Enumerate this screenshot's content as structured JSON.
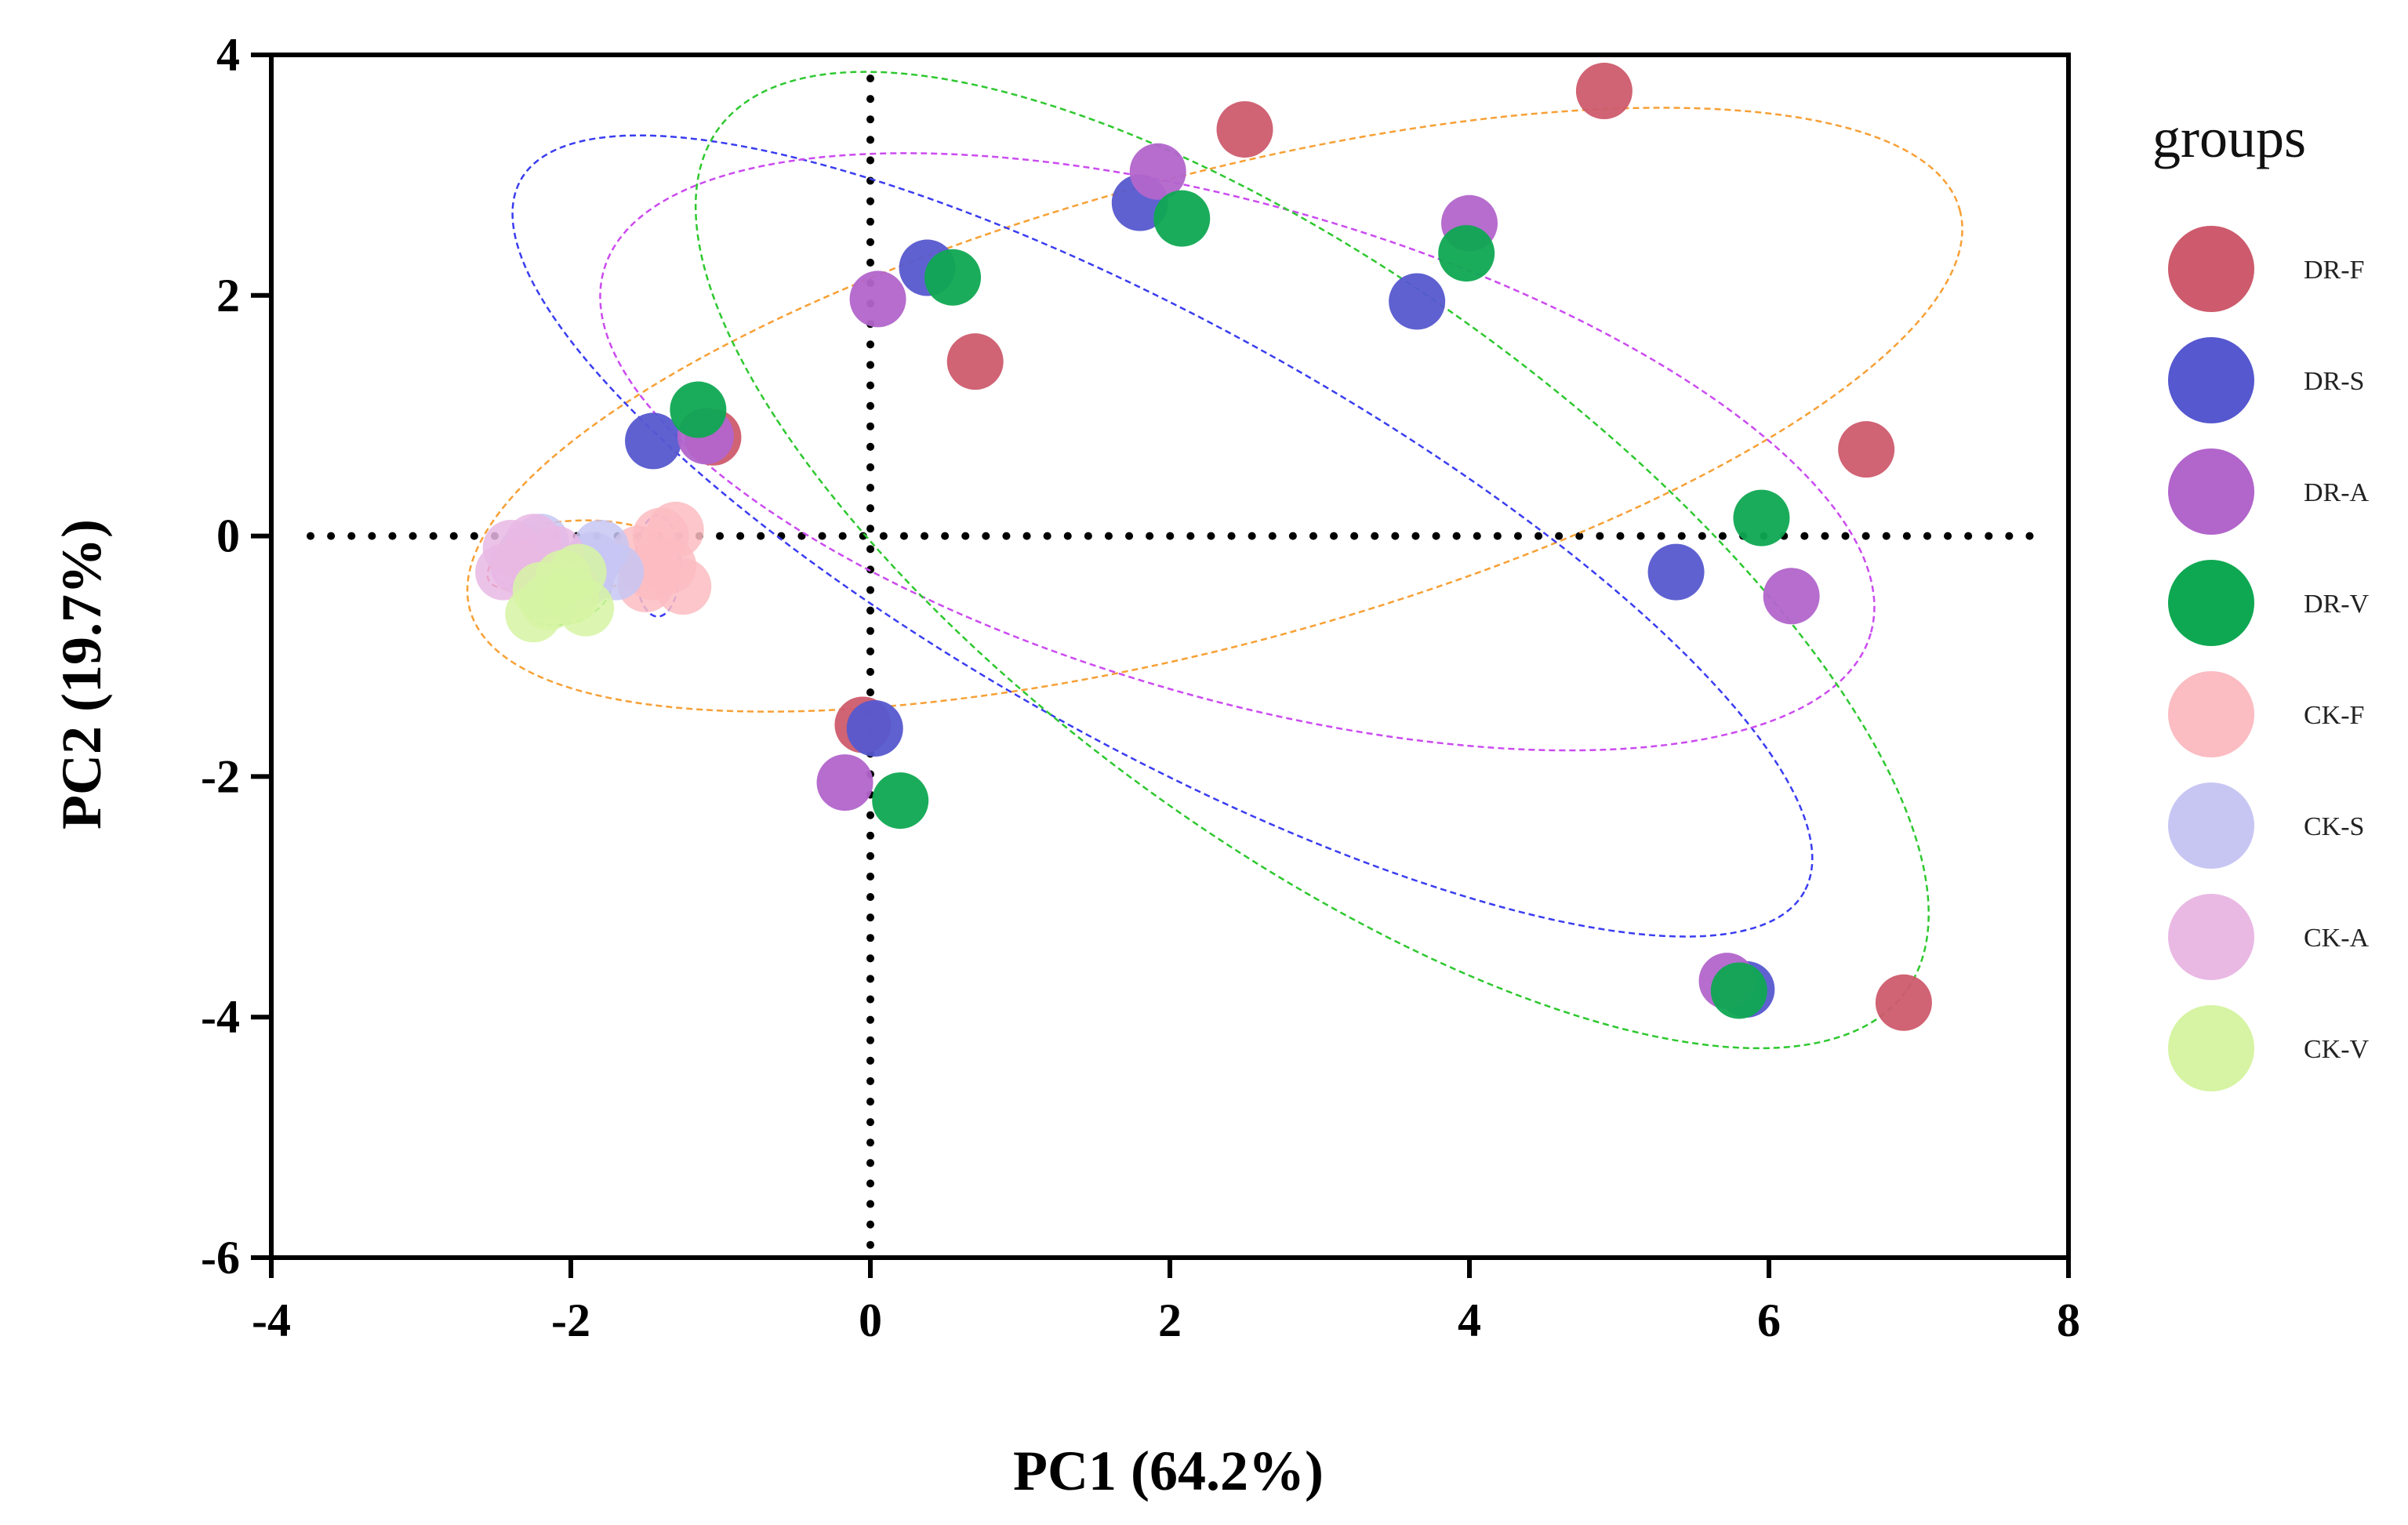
{
  "chart_data": {
    "type": "scatter",
    "xlabel": "PC1 (64.2%)",
    "ylabel": "PC2 (19.7%)",
    "xlim": [
      -4,
      8
    ],
    "ylim": [
      -6,
      4
    ],
    "xticks": [
      "-4",
      "-2",
      "0",
      "2",
      "4",
      "6",
      "8"
    ],
    "yticks": [
      "4",
      "2",
      "0",
      "-2",
      "-4",
      "-6"
    ],
    "reference_lines": {
      "x": 0,
      "y": 0,
      "style": "dotted"
    },
    "legend": {
      "title": "groups",
      "position": "right"
    },
    "series": [
      {
        "name": "DR-F",
        "color": "#cd5b6d",
        "ellipse_color": "#f7a035",
        "points": [
          [
            4.9,
            3.7
          ],
          [
            2.5,
            3.38
          ],
          [
            0.7,
            1.45
          ],
          [
            6.65,
            0.72
          ],
          [
            -0.05,
            -1.57
          ],
          [
            6.9,
            -3.88
          ],
          [
            -1.05,
            0.82
          ]
        ]
      },
      {
        "name": "DR-S",
        "color": "#5658cf",
        "ellipse_color": "#3a3df0",
        "points": [
          [
            1.8,
            2.77
          ],
          [
            0.38,
            2.23
          ],
          [
            3.65,
            1.95
          ],
          [
            -1.45,
            0.79
          ],
          [
            5.38,
            -0.3
          ],
          [
            0.03,
            -1.6
          ],
          [
            5.85,
            -3.77
          ]
        ]
      },
      {
        "name": "DR-A",
        "color": "#b265cb",
        "ellipse_color": "#cb4bf0",
        "points": [
          [
            1.92,
            3.03
          ],
          [
            4.0,
            2.6
          ],
          [
            0.05,
            1.97
          ],
          [
            -1.1,
            0.83
          ],
          [
            6.15,
            -0.5
          ],
          [
            -0.17,
            -2.05
          ],
          [
            5.72,
            -3.7
          ]
        ]
      },
      {
        "name": "DR-V",
        "color": "#0fa852",
        "ellipse_color": "#2ec830",
        "points": [
          [
            2.08,
            2.64
          ],
          [
            0.55,
            2.15
          ],
          [
            3.98,
            2.35
          ],
          [
            -1.15,
            1.05
          ],
          [
            5.95,
            0.15
          ],
          [
            0.2,
            -2.2
          ],
          [
            5.8,
            -3.78
          ]
        ]
      },
      {
        "name": "CK-F",
        "color": "#fbbcc2",
        "ellipse_color": "#f7a035",
        "points": [
          [
            -1.5,
            -0.4
          ],
          [
            -1.25,
            -0.42
          ],
          [
            -1.4,
            0.0
          ],
          [
            -1.55,
            -0.15
          ],
          [
            -1.35,
            -0.25
          ],
          [
            -1.45,
            -0.3
          ],
          [
            -1.3,
            0.05
          ]
        ]
      },
      {
        "name": "CK-S",
        "color": "#c7c6f3",
        "ellipse_color": "#3a3df0",
        "points": [
          [
            -2.2,
            -0.05
          ],
          [
            -1.85,
            -0.2
          ],
          [
            -1.7,
            -0.3
          ],
          [
            -2.0,
            -0.3
          ],
          [
            -1.8,
            -0.1
          ],
          [
            -2.3,
            -0.15
          ],
          [
            -1.9,
            -0.35
          ]
        ]
      },
      {
        "name": "CK-A",
        "color": "#e9b9e4",
        "ellipse_color": "#cb4bf0",
        "points": [
          [
            -2.35,
            -0.25
          ],
          [
            -2.2,
            -0.35
          ],
          [
            -2.1,
            -0.15
          ],
          [
            -2.45,
            -0.3
          ],
          [
            -2.0,
            -0.45
          ],
          [
            -2.25,
            -0.05
          ],
          [
            -2.4,
            -0.1
          ]
        ]
      },
      {
        "name": "CK-V",
        "color": "#d6f4a3",
        "ellipse_color": "#2ec830",
        "points": [
          [
            -2.25,
            -0.65
          ],
          [
            -2.0,
            -0.5
          ],
          [
            -1.95,
            -0.3
          ],
          [
            -2.15,
            -0.55
          ],
          [
            -1.9,
            -0.6
          ],
          [
            -2.05,
            -0.35
          ],
          [
            -2.2,
            -0.45
          ]
        ]
      }
    ],
    "ellipses": [
      {
        "group": "DR-F",
        "color": "#f7a035",
        "cx": 2.3,
        "cy": 1.05,
        "rx": 5.15,
        "ry": 1.95,
        "angle": 15
      },
      {
        "group": "DR-S",
        "color": "#3a3df0",
        "cx": 1.95,
        "cy": 0.0,
        "rx": 4.9,
        "ry": 1.75,
        "angle": -29
      },
      {
        "group": "DR-A",
        "color": "#cb4bf0",
        "cx": 2.45,
        "cy": 0.7,
        "rx": 4.4,
        "ry": 2.05,
        "angle": -16
      },
      {
        "group": "DR-V",
        "color": "#2ec830",
        "cx": 2.95,
        "cy": -0.2,
        "rx": 4.9,
        "ry": 2.35,
        "angle": -36
      },
      {
        "group": "CK-F",
        "color": "#f7a035",
        "cx": -1.9,
        "cy": -0.15,
        "rx": 0.6,
        "ry": 0.28,
        "angle": 0
      },
      {
        "group": "CK-F",
        "color": "#3a3df0",
        "cx": -1.42,
        "cy": -0.25,
        "rx": 0.15,
        "ry": 0.42,
        "angle": 0
      },
      {
        "group": "CK-S",
        "color": "#cb4bf0",
        "cx": -2.32,
        "cy": -0.25,
        "rx": 0.2,
        "ry": 0.14,
        "angle": 20
      },
      {
        "group": "CK-A",
        "color": "#f03a3a",
        "cx": -2.35,
        "cy": -0.25,
        "rx": 0.22,
        "ry": 0.16,
        "angle": 25
      },
      {
        "group": "CK-V",
        "color": "#2ec830",
        "cx": -2.02,
        "cy": -0.5,
        "rx": 0.3,
        "ry": 0.22,
        "angle": 20
      },
      {
        "group": "CK-V",
        "color": "#cb4bf0",
        "cx": -2.05,
        "cy": -0.45,
        "rx": 0.28,
        "ry": 0.2,
        "angle": 10
      }
    ]
  }
}
